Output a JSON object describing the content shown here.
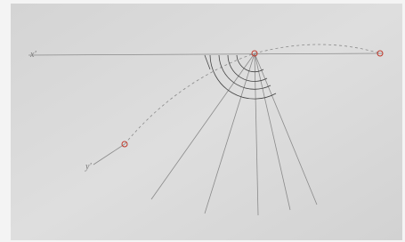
{
  "labels": {
    "left": "x'",
    "lower_left": "y'"
  }
}
